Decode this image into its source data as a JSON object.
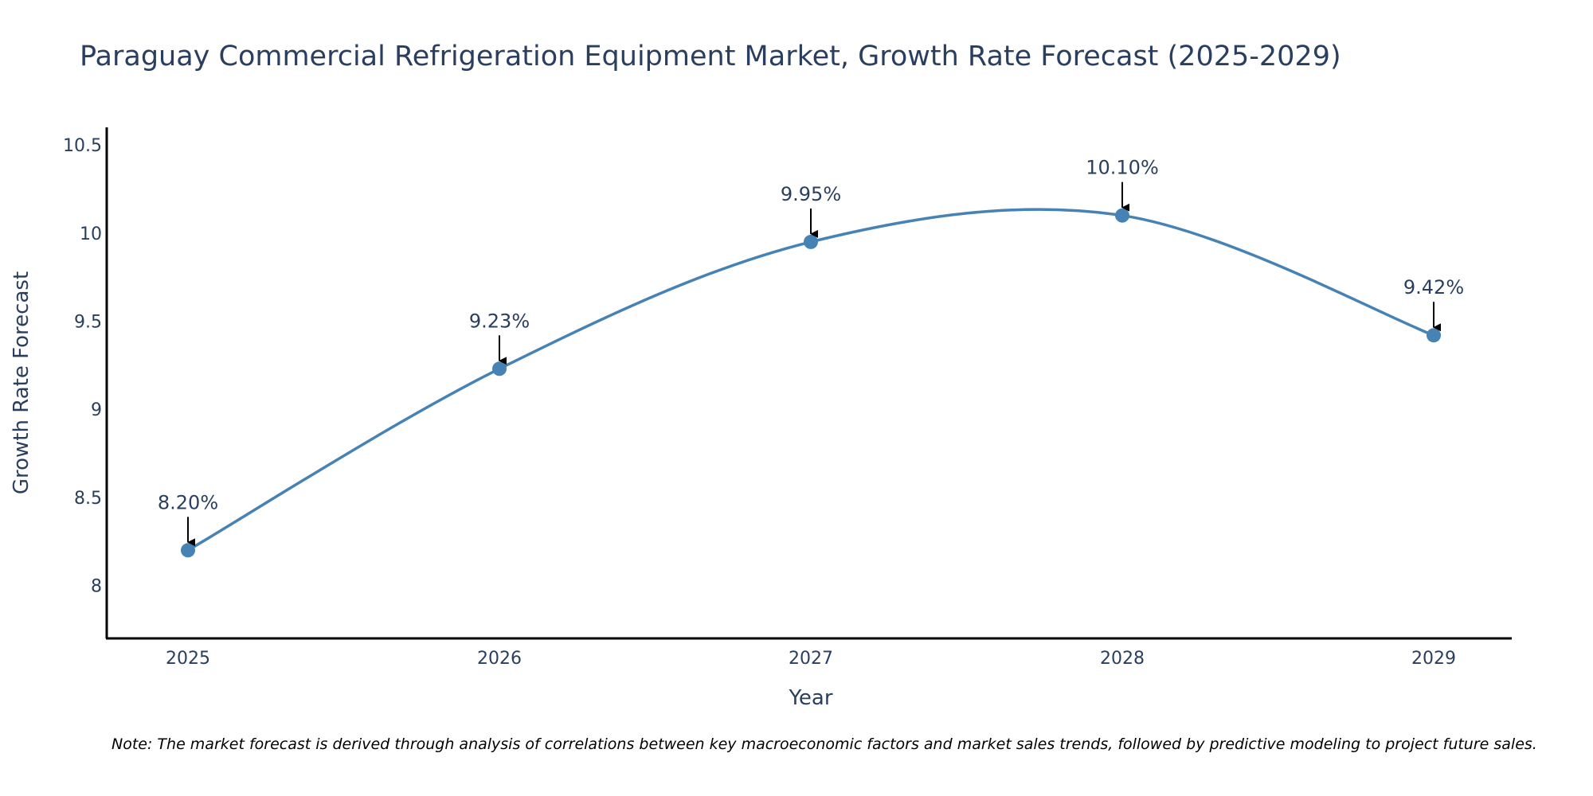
{
  "chart_data": {
    "type": "line",
    "title": "Paraguay Commercial Refrigeration Equipment Market, Growth Rate Forecast (2025-2029)",
    "xlabel": "Year",
    "ylabel": "Growth Rate Forecast",
    "categories": [
      "2025",
      "2026",
      "2027",
      "2028",
      "2029"
    ],
    "series": [
      {
        "name": "Growth Rate Forecast",
        "values": [
          8.2,
          9.23,
          9.95,
          10.1,
          9.42
        ],
        "labels": [
          "8.20%",
          "9.23%",
          "9.95%",
          "10.10%",
          "9.42%"
        ]
      }
    ],
    "ylim": [
      7.7,
      10.6
    ],
    "yticks": [
      8,
      8.5,
      9,
      9.5,
      10,
      10.5
    ],
    "ytick_labels": [
      "8",
      "8.5",
      "9",
      "9.5",
      "10",
      "10.5"
    ],
    "grid": false,
    "line_shape": "spline",
    "colors": {
      "line": "#4682B4",
      "text": "#2a3f5f",
      "axis": "#000000",
      "arrow": "#000000"
    },
    "note": "Note: The market forecast is derived through analysis of correlations between key macroeconomic factors and market sales trends, followed by predictive modeling to project future sales."
  }
}
